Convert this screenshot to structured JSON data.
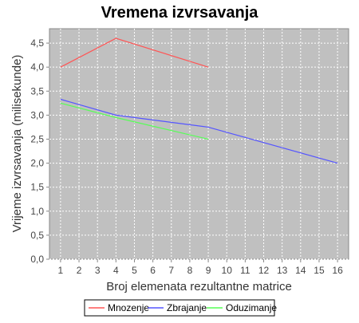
{
  "chart_data": {
    "type": "line",
    "title": "Vremena izvrsavanja",
    "xlabel": "Broj elemenata rezultantne matrice",
    "ylabel": "Vrijeme izvrsavanja (milisekunde)",
    "x_ticks": [
      "1",
      "2",
      "3",
      "4",
      "5",
      "6",
      "7",
      "8",
      "9",
      "10",
      "11",
      "12",
      "13",
      "14",
      "15",
      "16"
    ],
    "y_ticks": [
      "0,0",
      "0,5",
      "1,0",
      "1,5",
      "2,0",
      "2,5",
      "3,0",
      "3,5",
      "4,0",
      "4,5"
    ],
    "xlim": [
      0.4,
      16.6
    ],
    "ylim": [
      0,
      4.8
    ],
    "grid": true,
    "legend_position": "bottom",
    "series": [
      {
        "name": "Mnozenje",
        "color": "#ff5555",
        "x": [
          1,
          4,
          9
        ],
        "y": [
          4.0,
          4.6,
          4.0
        ]
      },
      {
        "name": "Zbrajanje",
        "color": "#5555ff",
        "x": [
          1,
          4,
          9,
          16
        ],
        "y": [
          3.33,
          3.0,
          2.75,
          2.0
        ]
      },
      {
        "name": "Oduzimanje",
        "color": "#55ff55",
        "x": [
          1,
          4,
          9
        ],
        "y": [
          3.25,
          2.95,
          2.5
        ]
      }
    ],
    "plot_background": "#c0c0c0",
    "grid_color": "#ffffff"
  }
}
